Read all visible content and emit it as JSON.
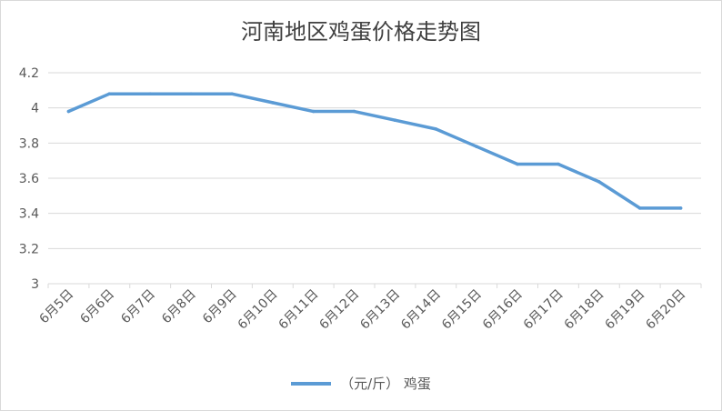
{
  "chart_data": {
    "type": "line",
    "title": "河南地区鸡蛋价格走势图",
    "xlabel": "",
    "ylabel": "",
    "categories": [
      "6月5日",
      "6月6日",
      "6月7日",
      "6月8日",
      "6月9日",
      "6月10日",
      "6月11日",
      "6月12日",
      "6月13日",
      "6月14日",
      "6月15日",
      "6月16日",
      "6月17日",
      "6月18日",
      "6月19日",
      "6月20日"
    ],
    "series": [
      {
        "name": "（元/斤） 鸡蛋",
        "color": "#5b9bd5",
        "values": [
          3.98,
          4.08,
          4.08,
          4.08,
          4.08,
          4.03,
          3.98,
          3.98,
          3.93,
          3.88,
          3.78,
          3.68,
          3.68,
          3.58,
          3.43,
          3.43
        ]
      }
    ],
    "ylim": [
      3,
      4.2
    ],
    "yticks": [
      "3",
      "3.2",
      "3.4",
      "3.6",
      "3.8",
      "4",
      "4.2"
    ],
    "grid": true,
    "legend_position": "bottom"
  }
}
